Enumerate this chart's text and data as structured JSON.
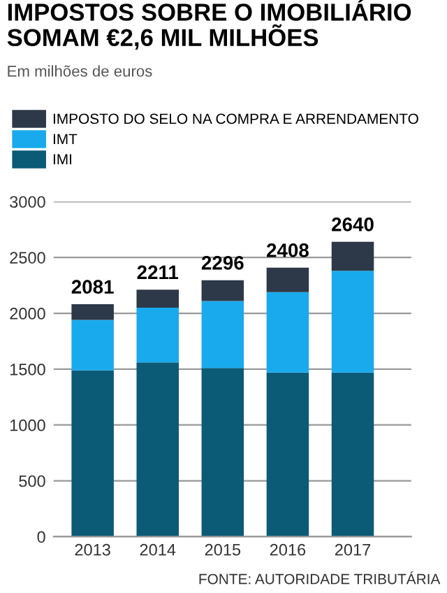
{
  "chart_data": {
    "type": "bar",
    "title": "IMPOSTOS SOBRE O IMOBILIÁRIO\nSOMAM €2,6 MIL MILHÕES",
    "subtitle": "Em milhões de euros",
    "categories": [
      "2013",
      "2014",
      "2015",
      "2016",
      "2017"
    ],
    "stacked": true,
    "series": [
      {
        "name": "IMI",
        "color": "#0b5b77",
        "values": [
          1490,
          1560,
          1510,
          1470,
          1470
        ]
      },
      {
        "name": "IMT",
        "color": "#19aaee",
        "values": [
          450,
          490,
          600,
          720,
          910
        ]
      },
      {
        "name": "IMPOSTO DO SELO NA COMPRA E ARRENDAMENTO",
        "color": "#2d3848",
        "values": [
          141,
          161,
          186,
          218,
          260
        ]
      }
    ],
    "totals": [
      "2081",
      "2211",
      "2296",
      "2408",
      "2640"
    ],
    "ylim": [
      0,
      3000
    ],
    "yticks": [
      0,
      500,
      1000,
      1500,
      2000,
      2500,
      3000
    ],
    "grid": "y",
    "legend": "top left",
    "annotations": [
      "FONTE: AUTORIDADE TRIBUTÁRIA"
    ]
  }
}
